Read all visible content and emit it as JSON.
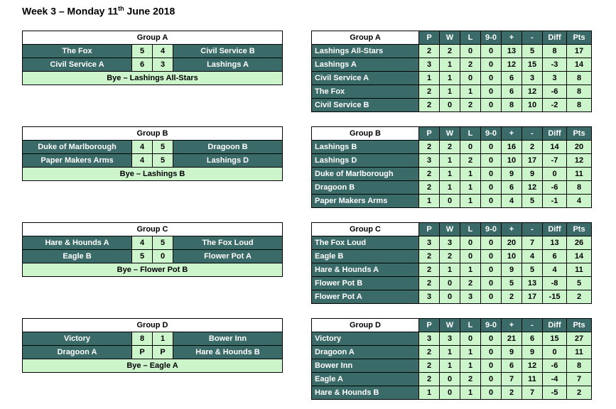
{
  "title": {
    "prefix": "Week 3 – Monday 11",
    "sup": "th",
    "suffix": " June 2018"
  },
  "fixtures": [
    {
      "group": "Group A",
      "matches": [
        {
          "home": "The Fox",
          "hs": "5",
          "as": "4",
          "away": "Civil Service B"
        },
        {
          "home": "Civil Service A",
          "hs": "6",
          "as": "3",
          "away": "Lashings A"
        }
      ],
      "bye": "Bye – Lashings All-Stars"
    },
    {
      "group": "Group B",
      "matches": [
        {
          "home": "Duke of Marlborough",
          "hs": "4",
          "as": "5",
          "away": "Dragoon B"
        },
        {
          "home": "Paper Makers Arms",
          "hs": "4",
          "as": "5",
          "away": "Lashings D"
        }
      ],
      "bye": "Bye – Lashings B"
    },
    {
      "group": "Group C",
      "matches": [
        {
          "home": "Hare & Hounds A",
          "hs": "4",
          "as": "5",
          "away": "The Fox Loud"
        },
        {
          "home": "Eagle B",
          "hs": "5",
          "as": "0",
          "away": "Flower Pot A"
        }
      ],
      "bye": "Bye – Flower Pot B"
    },
    {
      "group": "Group D",
      "matches": [
        {
          "home": "Victory",
          "hs": "8",
          "as": "1",
          "away": "Bower Inn"
        },
        {
          "home": "Dragoon A",
          "hs": "P",
          "as": "P",
          "away": "Hare & Hounds B"
        }
      ],
      "bye": "Bye – Eagle A"
    }
  ],
  "league_headers": [
    "P",
    "W",
    "L",
    "9-0",
    "+",
    "-",
    "Diff",
    "Pts"
  ],
  "leagues": [
    {
      "group": "Group A",
      "rows": [
        {
          "team": "Lashings All-Stars",
          "stats": [
            "2",
            "2",
            "0",
            "0",
            "13",
            "5",
            "8",
            "17"
          ]
        },
        {
          "team": "Lashings A",
          "stats": [
            "3",
            "1",
            "2",
            "0",
            "12",
            "15",
            "-3",
            "14"
          ]
        },
        {
          "team": "Civil Service A",
          "stats": [
            "1",
            "1",
            "0",
            "0",
            "6",
            "3",
            "3",
            "8"
          ]
        },
        {
          "team": "The Fox",
          "stats": [
            "2",
            "1",
            "1",
            "0",
            "6",
            "12",
            "-6",
            "8"
          ]
        },
        {
          "team": "Civil Service B",
          "stats": [
            "2",
            "0",
            "2",
            "0",
            "8",
            "10",
            "-2",
            "8"
          ]
        }
      ]
    },
    {
      "group": "Group B",
      "rows": [
        {
          "team": "Lashings B",
          "stats": [
            "2",
            "2",
            "0",
            "0",
            "16",
            "2",
            "14",
            "20"
          ]
        },
        {
          "team": "Lashings D",
          "stats": [
            "3",
            "1",
            "2",
            "0",
            "10",
            "17",
            "-7",
            "12"
          ]
        },
        {
          "team": "Duke of Marlborough",
          "stats": [
            "2",
            "1",
            "1",
            "0",
            "9",
            "9",
            "0",
            "11"
          ]
        },
        {
          "team": "Dragoon B",
          "stats": [
            "2",
            "1",
            "1",
            "0",
            "6",
            "12",
            "-6",
            "8"
          ]
        },
        {
          "team": "Paper Makers Arms",
          "stats": [
            "1",
            "0",
            "1",
            "0",
            "4",
            "5",
            "-1",
            "4"
          ]
        }
      ]
    },
    {
      "group": "Group C",
      "rows": [
        {
          "team": "The Fox Loud",
          "stats": [
            "3",
            "3",
            "0",
            "0",
            "20",
            "7",
            "13",
            "26"
          ]
        },
        {
          "team": "Eagle B",
          "stats": [
            "2",
            "2",
            "0",
            "0",
            "10",
            "4",
            "6",
            "14"
          ]
        },
        {
          "team": "Hare & Hounds A",
          "stats": [
            "2",
            "1",
            "1",
            "0",
            "9",
            "5",
            "4",
            "11"
          ]
        },
        {
          "team": "Flower Pot B",
          "stats": [
            "2",
            "0",
            "2",
            "0",
            "5",
            "13",
            "-8",
            "5"
          ]
        },
        {
          "team": "Flower Pot A",
          "stats": [
            "3",
            "0",
            "3",
            "0",
            "2",
            "17",
            "-15",
            "2"
          ]
        }
      ]
    },
    {
      "group": "Group D",
      "rows": [
        {
          "team": "Victory",
          "stats": [
            "3",
            "3",
            "0",
            "0",
            "21",
            "6",
            "15",
            "27"
          ]
        },
        {
          "team": "Dragoon A",
          "stats": [
            "2",
            "1",
            "1",
            "0",
            "9",
            "9",
            "0",
            "11"
          ]
        },
        {
          "team": "Bower Inn",
          "stats": [
            "2",
            "1",
            "1",
            "0",
            "6",
            "12",
            "-6",
            "8"
          ]
        },
        {
          "team": "Eagle A",
          "stats": [
            "2",
            "0",
            "2",
            "0",
            "7",
            "11",
            "-4",
            "7"
          ]
        },
        {
          "team": "Hare & Hounds B",
          "stats": [
            "1",
            "0",
            "1",
            "0",
            "2",
            "7",
            "-5",
            "2"
          ]
        }
      ]
    }
  ],
  "colors": {
    "dark": "#3b6b68",
    "light": "#ccf5cc"
  }
}
